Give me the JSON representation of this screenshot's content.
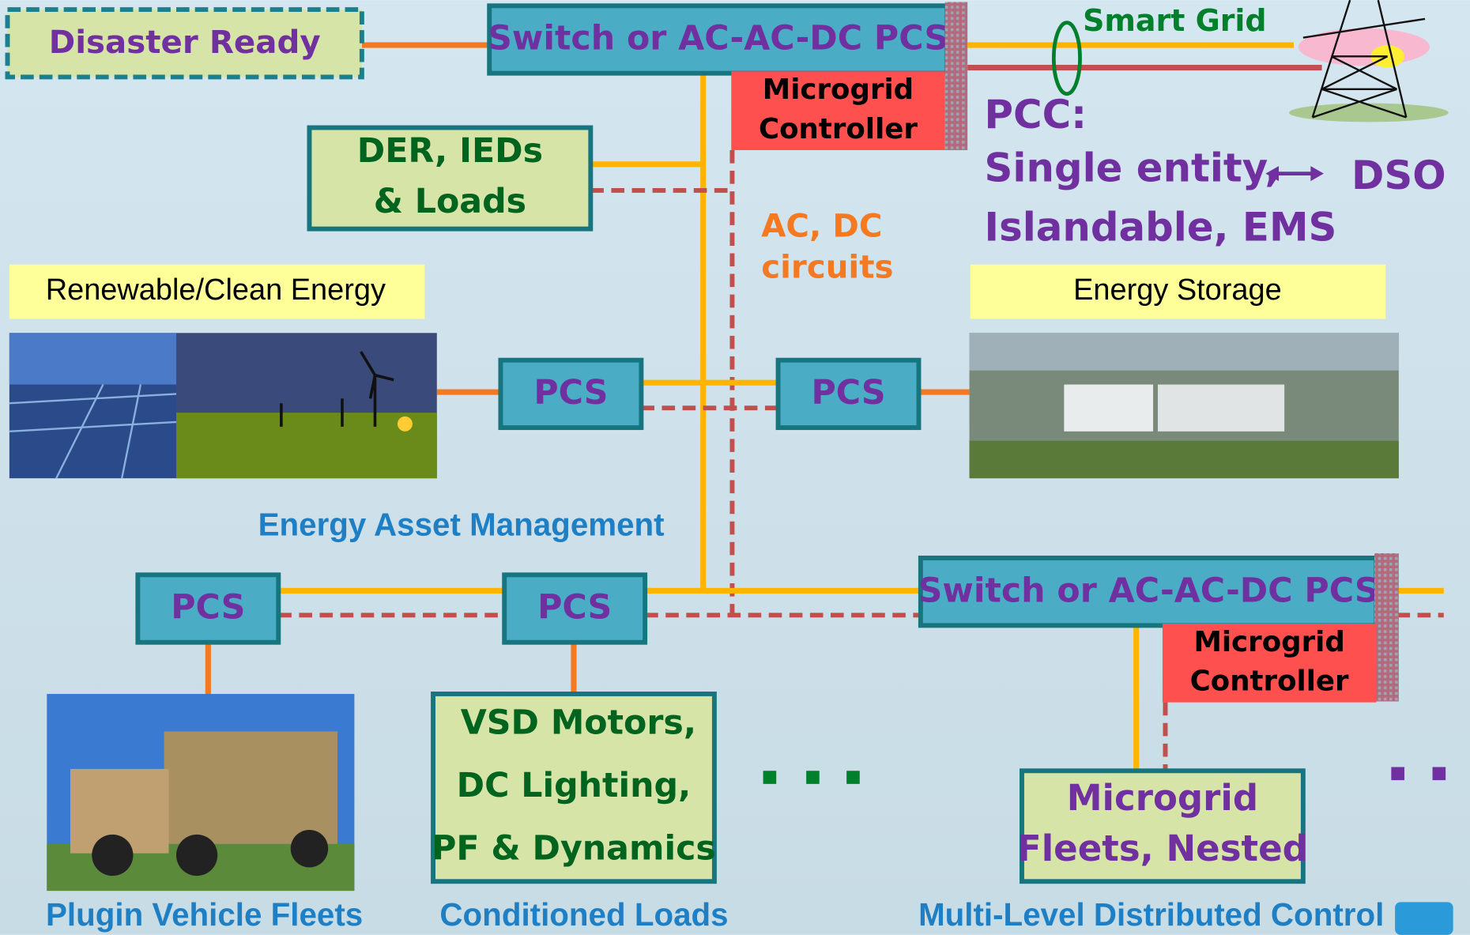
{
  "top": {
    "disaster_ready": "Disaster Ready",
    "switch": "Switch or AC-AC-DC PCS",
    "controller": [
      "Microgrid",
      "Controller"
    ],
    "smart_grid": "Smart Grid"
  },
  "pcc": {
    "lines": [
      "PCC:",
      "Single entity,",
      "Islandable, EMS"
    ],
    "dso": "DSO"
  },
  "der": [
    "DER, IEDs",
    "& Loads"
  ],
  "circuits": [
    "AC, DC",
    "circuits"
  ],
  "renewable": "Renewable/Clean Energy",
  "storage": "Energy Storage",
  "pcs": [
    "PCS",
    "PCS",
    "PCS",
    "PCS"
  ],
  "asset_management": "Energy Asset Management",
  "bottom": {
    "switch": "Switch or AC-AC-DC PCS",
    "controller": [
      "Microgrid",
      "Controller"
    ]
  },
  "loads": [
    "VSD Motors,",
    "DC Lighting,",
    "PF & Dynamics"
  ],
  "fleets": [
    "Microgrid",
    "Fleets, Nested"
  ],
  "captions": [
    "Plugin Vehicle Fleets",
    "Conditioned Loads",
    "Multi-Level Distributed Control"
  ]
}
